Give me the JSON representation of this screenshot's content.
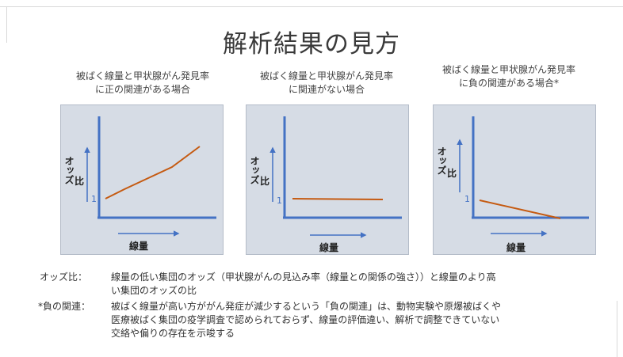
{
  "title": "解析結果の見方",
  "panels": [
    {
      "caption_line1": "被ばく線量と甲状腺がん発見率",
      "caption_line2": "に正の関連がある場合",
      "ylabel_line1": "オッズ",
      "ylabel_line2": "比",
      "one_label": "1",
      "xlabel": "線量",
      "trend": "positive"
    },
    {
      "caption_line1": "被ばく線量と甲状腺がん発見率",
      "caption_line2": "に関連がない場合",
      "ylabel_line1": "オッズ",
      "ylabel_line2": "比",
      "one_label": "1",
      "xlabel": "線量",
      "trend": "none"
    },
    {
      "caption_line1": "被ばく線量と甲状腺がん発見率",
      "caption_line2": "に負の関連がある場合*",
      "ylabel_line1": "オッズ",
      "ylabel_line2": "比",
      "one_label": "1",
      "xlabel": "線量",
      "trend": "negative"
    }
  ],
  "notes": {
    "odds_term": "オッズ比：",
    "odds_line1": "線量の低い集団のオッズ（甲状腺がんの見込み率（線量との関係の強さ））と線量のより高",
    "odds_line2": "い集団のオッズの比",
    "neg_term": "*負の関連：",
    "neg_line1": " 被ばく線量が高い方ががん発症が減少するという「負の関連」は、動物実験や原爆被ばくや",
    "neg_line2": "医療被ばく集団の疫学調査で認められておらず、線量の評価違い、解析で調整できていない",
    "neg_line3": "交絡や偏りの存在を示唆する"
  },
  "colors": {
    "axis": "#4472c4",
    "line": "#c55a11",
    "panel_bg": "#d6dce5"
  }
}
